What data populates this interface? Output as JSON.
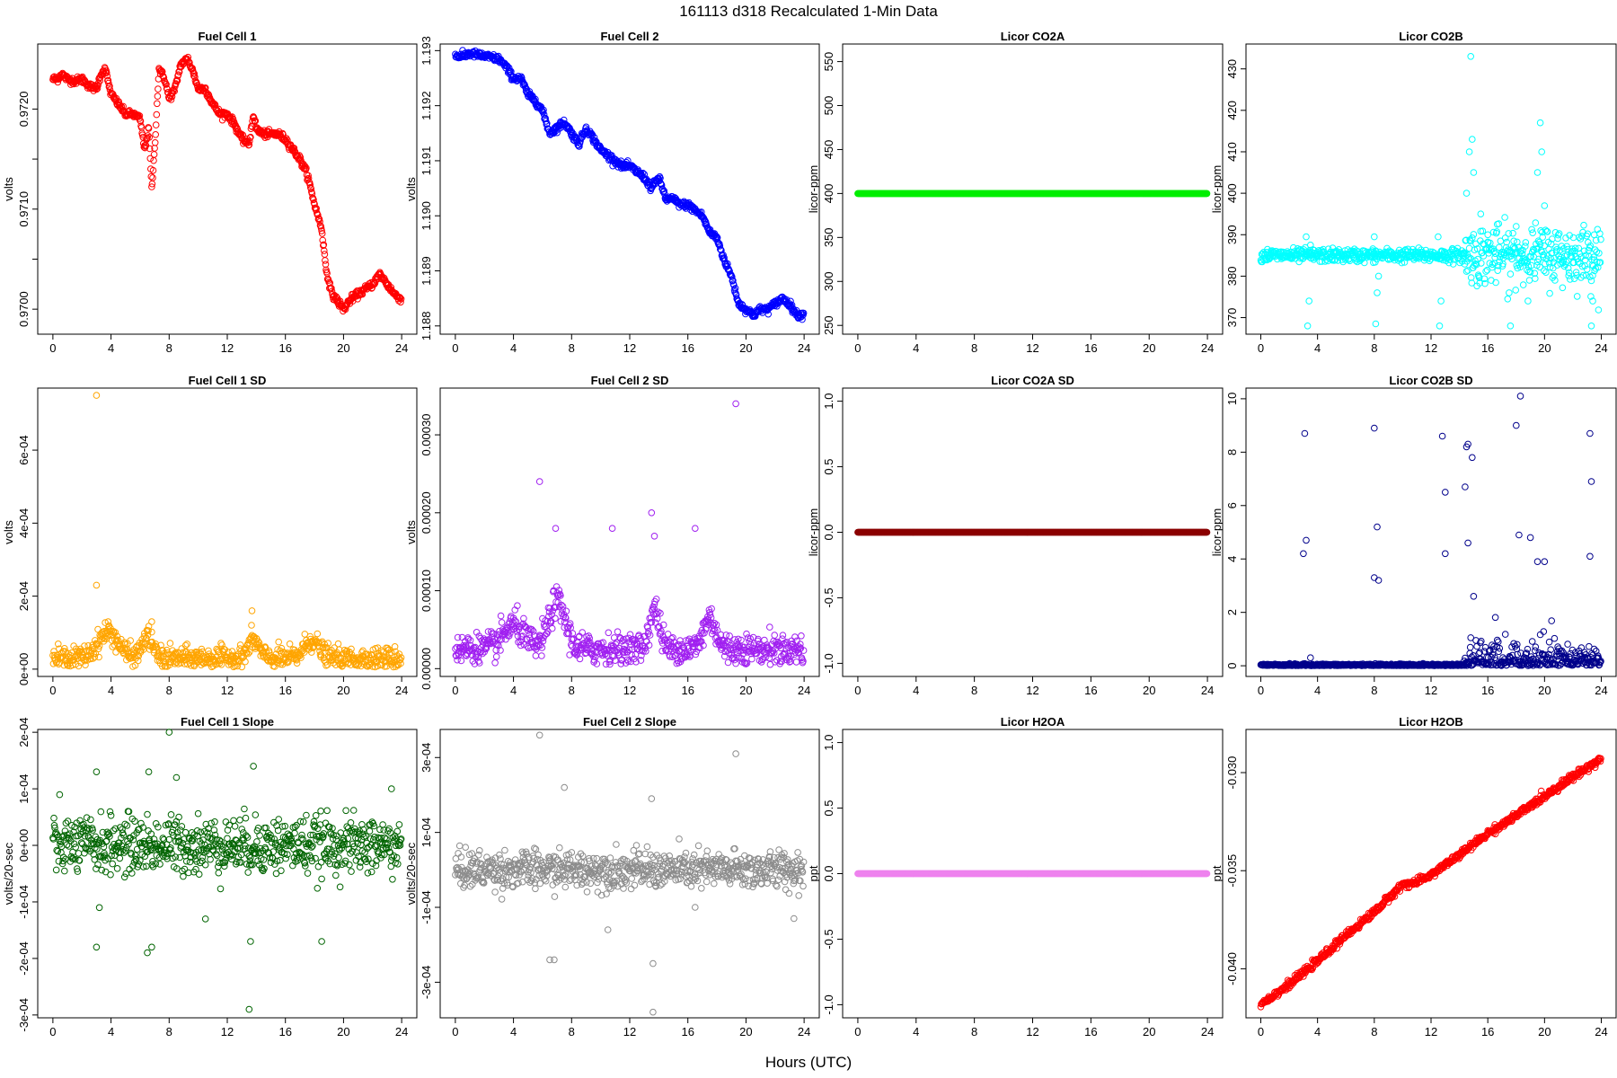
{
  "figure": {
    "title": "161113   d318   Recalculated 1-Min Data",
    "xlabel": "Hours (UTC)"
  },
  "chart_data": [
    {
      "id": "fc1",
      "type": "scatter",
      "title": "Fuel Cell 1",
      "ylabel": "volts",
      "color": "#ff0000",
      "xlim": [
        0,
        24
      ],
      "ylim": [
        0.96975,
        0.97265
      ],
      "yticks": [
        0.97,
        0.9705,
        0.971,
        0.9715,
        0.972
      ],
      "yticklabels": [
        "0.9700",
        "",
        "0.9710",
        "",
        "0.9720"
      ],
      "kind": "trace",
      "series": [
        [
          0,
          0.9723
        ],
        [
          0.3,
          0.9723
        ],
        [
          0.6,
          0.97235
        ],
        [
          1.0,
          0.9723
        ],
        [
          1.5,
          0.97228
        ],
        [
          2.0,
          0.9723
        ],
        [
          2.5,
          0.97223
        ],
        [
          3.0,
          0.9722
        ],
        [
          3.3,
          0.97235
        ],
        [
          3.6,
          0.9724
        ],
        [
          4.0,
          0.97215
        ],
        [
          4.5,
          0.97205
        ],
        [
          5.0,
          0.97195
        ],
        [
          5.5,
          0.97195
        ],
        [
          6.0,
          0.9719
        ],
        [
          6.3,
          0.9716
        ],
        [
          6.6,
          0.9718
        ],
        [
          6.8,
          0.9712
        ],
        [
          7.0,
          0.9716
        ],
        [
          7.3,
          0.9724
        ],
        [
          7.7,
          0.9723
        ],
        [
          8.0,
          0.9721
        ],
        [
          8.4,
          0.9722
        ],
        [
          8.8,
          0.97245
        ],
        [
          9.3,
          0.9725
        ],
        [
          9.7,
          0.97235
        ],
        [
          10.0,
          0.9722
        ],
        [
          10.5,
          0.9722
        ],
        [
          11.0,
          0.97205
        ],
        [
          11.5,
          0.97195
        ],
        [
          12.0,
          0.97195
        ],
        [
          12.5,
          0.97185
        ],
        [
          13.0,
          0.9717
        ],
        [
          13.5,
          0.97165
        ],
        [
          13.8,
          0.97195
        ],
        [
          14.0,
          0.9718
        ],
        [
          14.5,
          0.97175
        ],
        [
          15.0,
          0.97175
        ],
        [
          15.5,
          0.97175
        ],
        [
          16.0,
          0.9717
        ],
        [
          16.5,
          0.9716
        ],
        [
          17.0,
          0.9715
        ],
        [
          17.5,
          0.97135
        ],
        [
          18.0,
          0.97105
        ],
        [
          18.5,
          0.9708
        ],
        [
          18.8,
          0.9704
        ],
        [
          19.2,
          0.97015
        ],
        [
          19.5,
          0.9701
        ],
        [
          20.0,
          0.97
        ],
        [
          20.5,
          0.9701
        ],
        [
          21.0,
          0.97015
        ],
        [
          21.5,
          0.9702
        ],
        [
          22.0,
          0.97025
        ],
        [
          22.5,
          0.97035
        ],
        [
          23.0,
          0.97025
        ],
        [
          23.5,
          0.97015
        ],
        [
          24.0,
          0.9701
        ]
      ]
    },
    {
      "id": "fc2",
      "type": "scatter",
      "title": "Fuel Cell 2",
      "ylabel": "volts",
      "color": "#0000ff",
      "xlim": [
        0,
        24
      ],
      "ylim": [
        1.18785,
        1.19312
      ],
      "yticks": [
        1.188,
        1.189,
        1.19,
        1.191,
        1.192,
        1.193
      ],
      "yticklabels": [
        "1.188",
        "1.189",
        "1.190",
        "1.191",
        "1.192",
        "1.193"
      ],
      "kind": "trace",
      "series": [
        [
          0,
          1.1929
        ],
        [
          0.5,
          1.1929
        ],
        [
          1.0,
          1.19295
        ],
        [
          2.0,
          1.1929
        ],
        [
          3.0,
          1.19285
        ],
        [
          3.5,
          1.1927
        ],
        [
          4.0,
          1.1925
        ],
        [
          4.5,
          1.1925
        ],
        [
          5.0,
          1.1922
        ],
        [
          5.5,
          1.1921
        ],
        [
          6.0,
          1.1919
        ],
        [
          6.5,
          1.1915
        ],
        [
          7.0,
          1.1916
        ],
        [
          7.5,
          1.1917
        ],
        [
          8.0,
          1.1915
        ],
        [
          8.5,
          1.1913
        ],
        [
          9.0,
          1.1916
        ],
        [
          9.5,
          1.1914
        ],
        [
          10.0,
          1.1912
        ],
        [
          10.5,
          1.1911
        ],
        [
          11.0,
          1.191
        ],
        [
          11.5,
          1.1909
        ],
        [
          12.0,
          1.1909
        ],
        [
          12.5,
          1.1908
        ],
        [
          13.0,
          1.1907
        ],
        [
          13.5,
          1.1905
        ],
        [
          14.0,
          1.1907
        ],
        [
          14.5,
          1.1903
        ],
        [
          15.0,
          1.1903
        ],
        [
          15.5,
          1.1902
        ],
        [
          16.0,
          1.1902
        ],
        [
          16.5,
          1.1901
        ],
        [
          17.0,
          1.19
        ],
        [
          17.5,
          1.1897
        ],
        [
          18.0,
          1.1896
        ],
        [
          18.5,
          1.1892
        ],
        [
          19.0,
          1.1889
        ],
        [
          19.5,
          1.1884
        ],
        [
          20.0,
          1.1883
        ],
        [
          20.5,
          1.1882
        ],
        [
          21.0,
          1.1883
        ],
        [
          21.5,
          1.1883
        ],
        [
          22.0,
          1.1884
        ],
        [
          22.5,
          1.1885
        ],
        [
          23.0,
          1.1884
        ],
        [
          23.5,
          1.1882
        ],
        [
          24.0,
          1.1882
        ]
      ]
    },
    {
      "id": "co2a",
      "type": "scatter",
      "title": "Licor CO2A",
      "ylabel": "licor-ppm",
      "color": "#00ee00",
      "xlim": [
        0,
        24
      ],
      "ylim": [
        240,
        570
      ],
      "yticks": [
        250,
        300,
        350,
        400,
        450,
        500,
        550
      ],
      "yticklabels": [
        "250",
        "300",
        "350",
        "400",
        "450",
        "500",
        "550"
      ],
      "kind": "flat",
      "series": [
        [
          0,
          400
        ],
        [
          24,
          400
        ]
      ]
    },
    {
      "id": "co2b",
      "type": "scatter",
      "title": "Licor CO2B",
      "ylabel": "licor-ppm",
      "color": "#00ffff",
      "xlim": [
        0,
        24
      ],
      "ylim": [
        366,
        436
      ],
      "yticks": [
        370,
        380,
        390,
        400,
        410,
        420,
        430
      ],
      "yticklabels": [
        "370",
        "380",
        "390",
        "400",
        "410",
        "420",
        "430"
      ],
      "kind": "noise",
      "base": 385,
      "spread": 0.8,
      "outliers": [
        [
          3.2,
          389.5
        ],
        [
          3.3,
          368
        ],
        [
          3.4,
          374
        ],
        [
          3.5,
          387.5
        ],
        [
          8.0,
          389.5
        ],
        [
          8.1,
          368.5
        ],
        [
          8.2,
          376
        ],
        [
          8.3,
          380
        ],
        [
          12.5,
          389.5
        ],
        [
          12.6,
          368
        ],
        [
          12.7,
          374
        ],
        [
          14.5,
          400
        ],
        [
          14.7,
          410
        ],
        [
          14.8,
          433
        ],
        [
          14.9,
          413
        ],
        [
          15.0,
          405
        ],
        [
          15.5,
          395
        ],
        [
          16.0,
          390
        ],
        [
          17.5,
          376
        ],
        [
          17.6,
          368
        ],
        [
          18.0,
          392
        ],
        [
          19.5,
          405
        ],
        [
          19.7,
          417
        ],
        [
          19.8,
          410
        ],
        [
          20.0,
          397
        ],
        [
          23.3,
          368
        ],
        [
          23.4,
          374
        ],
        [
          23.5,
          390
        ]
      ],
      "noisy_after": 14.3,
      "noisy_spread": 3.5
    },
    {
      "id": "fc1sd",
      "type": "scatter",
      "title": "Fuel Cell 1 SD",
      "ylabel": "volts",
      "color": "#ffa500",
      "xlim": [
        0,
        24
      ],
      "ylim": [
        -2e-05,
        0.00077
      ],
      "yticks": [
        0,
        0.0002,
        0.0004,
        0.0006
      ],
      "yticklabels": [
        "0e+00",
        "2e-04",
        "4e-04",
        "6e-04"
      ],
      "kind": "noise",
      "base": 3e-05,
      "spread": 1.5e-05,
      "bumps": [
        [
          3.8,
          7e-05,
          1.0
        ],
        [
          6.5,
          6e-05,
          0.5
        ],
        [
          13.8,
          5e-05,
          0.5
        ],
        [
          17.8,
          5e-05,
          0.7
        ]
      ],
      "outliers": [
        [
          3.0,
          0.00075
        ],
        [
          3.0,
          0.00023
        ],
        [
          3.8,
          0.00013
        ],
        [
          6.8,
          0.00013
        ],
        [
          13.7,
          0.00016
        ]
      ]
    },
    {
      "id": "fc2sd",
      "type": "scatter",
      "title": "Fuel Cell 2 SD",
      "ylabel": "volts",
      "color": "#a020f0",
      "xlim": [
        0,
        24
      ],
      "ylim": [
        -1e-05,
        0.00036
      ],
      "yticks": [
        0,
        0.0001,
        0.0002,
        0.0003
      ],
      "yticklabels": [
        "0.00000",
        "0.00010",
        "0.00020",
        "0.00030"
      ],
      "kind": "noise",
      "base": 2.5e-05,
      "spread": 1e-05,
      "bumps": [
        [
          4.0,
          3e-05,
          1.0
        ],
        [
          7.0,
          6e-05,
          0.8
        ],
        [
          13.7,
          5e-05,
          0.5
        ],
        [
          17.5,
          4e-05,
          0.6
        ]
      ],
      "outliers": [
        [
          5.8,
          0.00024
        ],
        [
          6.9,
          0.00018
        ],
        [
          10.8,
          0.00018
        ],
        [
          13.5,
          0.0002
        ],
        [
          13.7,
          0.00017
        ],
        [
          16.5,
          0.00018
        ],
        [
          19.3,
          0.00034
        ]
      ]
    },
    {
      "id": "co2asd",
      "type": "scatter",
      "title": "Licor CO2A SD",
      "ylabel": "licor-ppm",
      "color": "#8b0000",
      "xlim": [
        0,
        24
      ],
      "ylim": [
        -1.1,
        1.1
      ],
      "yticks": [
        -1,
        -0.5,
        0,
        0.5,
        1
      ],
      "yticklabels": [
        "-1.0",
        "-0.5",
        "0.0",
        "0.5",
        "1.0"
      ],
      "kind": "flat",
      "series": [
        [
          0,
          0
        ],
        [
          24,
          0
        ]
      ]
    },
    {
      "id": "co2bsd",
      "type": "scatter",
      "title": "Licor CO2B SD",
      "ylabel": "licor-ppm",
      "color": "#00008b",
      "xlim": [
        0,
        24
      ],
      "ylim": [
        -0.4,
        10.4
      ],
      "yticks": [
        0,
        2,
        4,
        6,
        8,
        10
      ],
      "yticklabels": [
        "0",
        "2",
        "4",
        "6",
        "8",
        "10"
      ],
      "kind": "noise",
      "base": 0.03,
      "spread": 0.02,
      "noisy_after": 14.3,
      "noisy_spread": 0.5,
      "outliers": [
        [
          3.0,
          4.2
        ],
        [
          3.1,
          8.7
        ],
        [
          3.2,
          4.7
        ],
        [
          3.5,
          0.3
        ],
        [
          8.0,
          8.9
        ],
        [
          8.2,
          5.2
        ],
        [
          8.0,
          3.3
        ],
        [
          8.3,
          3.2
        ],
        [
          12.8,
          8.6
        ],
        [
          13.0,
          6.5
        ],
        [
          13.0,
          4.2
        ],
        [
          14.4,
          6.7
        ],
        [
          14.5,
          8.2
        ],
        [
          14.6,
          8.3
        ],
        [
          14.6,
          4.6
        ],
        [
          14.9,
          7.8
        ],
        [
          15.0,
          2.6
        ],
        [
          18.0,
          9.0
        ],
        [
          18.3,
          10.1
        ],
        [
          18.2,
          4.9
        ],
        [
          19.0,
          4.8
        ],
        [
          19.5,
          3.9
        ],
        [
          20.0,
          3.9
        ],
        [
          23.2,
          8.7
        ],
        [
          23.3,
          6.9
        ],
        [
          23.2,
          4.1
        ]
      ]
    },
    {
      "id": "fc1slope",
      "type": "scatter",
      "title": "Fuel Cell 1 Slope",
      "ylabel": "volts/20-sec",
      "color": "#006400",
      "xlim": [
        0,
        24
      ],
      "ylim": [
        -0.000305,
        0.000205
      ],
      "yticks": [
        -0.0003,
        -0.0002,
        -0.0001,
        0,
        0.0001,
        0.0002
      ],
      "yticklabels": [
        "-3e-04",
        "-2e-04",
        "-1e-04",
        "0e+00",
        "1e-04",
        "2e-04"
      ],
      "kind": "noise",
      "base": 0.0,
      "spread": 2.5e-05,
      "outliers": [
        [
          3.0,
          0.00013
        ],
        [
          3.0,
          -0.00018
        ],
        [
          3.2,
          -0.00011
        ],
        [
          6.6,
          0.00013
        ],
        [
          6.5,
          -0.00019
        ],
        [
          6.8,
          -0.00018
        ],
        [
          8.0,
          0.0002
        ],
        [
          8.5,
          0.00012
        ],
        [
          10.5,
          -0.00013
        ],
        [
          13.5,
          -0.00029
        ],
        [
          13.6,
          -0.00017
        ],
        [
          13.8,
          0.00014
        ],
        [
          18.5,
          -0.00017
        ],
        [
          23.3,
          0.0001
        ]
      ]
    },
    {
      "id": "fc2slope",
      "type": "scatter",
      "title": "Fuel Cell 2 Slope",
      "ylabel": "volts/20-sec",
      "color": "#8c8c8c",
      "xlim": [
        0,
        24
      ],
      "ylim": [
        -0.000395,
        0.000375
      ],
      "yticks": [
        -0.0003,
        -0.0001,
        0.0001,
        0.0003
      ],
      "yticklabels": [
        "-3e-04",
        "-1e-04",
        "1e-04",
        "3e-04"
      ],
      "kind": "noise",
      "base": 0.0,
      "spread": 2.5e-05,
      "outliers": [
        [
          5.8,
          0.00036
        ],
        [
          6.5,
          -0.00024
        ],
        [
          6.8,
          -0.00024
        ],
        [
          7.5,
          0.00022
        ],
        [
          10.5,
          -0.00016
        ],
        [
          13.5,
          0.00019
        ],
        [
          13.6,
          -0.00038
        ],
        [
          13.6,
          -0.00025
        ],
        [
          16.5,
          -0.0001
        ],
        [
          19.3,
          0.00031
        ],
        [
          23.3,
          -0.00013
        ]
      ]
    },
    {
      "id": "h2oa",
      "type": "scatter",
      "title": "Licor H2OA",
      "ylabel": "ppt",
      "color": "#ee82ee",
      "xlim": [
        0,
        24
      ],
      "ylim": [
        -1.1,
        1.1
      ],
      "yticks": [
        -1,
        -0.5,
        0,
        0.5,
        1
      ],
      "yticklabels": [
        "-1.0",
        "-0.5",
        "0.0",
        "0.5",
        "1.0"
      ],
      "kind": "flat",
      "series": [
        [
          0,
          0
        ],
        [
          24,
          0
        ]
      ]
    },
    {
      "id": "h2ob",
      "type": "scatter",
      "title": "Licor H2OB",
      "ylabel": "ppt",
      "color": "#ff0000",
      "xlim": [
        0,
        24
      ],
      "ylim": [
        -0.0425,
        -0.0278
      ],
      "yticks": [
        -0.04,
        -0.035,
        -0.03
      ],
      "yticklabels": [
        "-0.040",
        "-0.035",
        "-0.030"
      ],
      "kind": "trace",
      "series": [
        [
          0,
          -0.0418
        ],
        [
          2,
          -0.0408
        ],
        [
          4,
          -0.0396
        ],
        [
          6,
          -0.0383
        ],
        [
          8,
          -0.0371
        ],
        [
          10,
          -0.0357
        ],
        [
          11,
          -0.0356
        ],
        [
          12,
          -0.0352
        ],
        [
          14,
          -0.0342
        ],
        [
          16,
          -0.0331
        ],
        [
          18,
          -0.0322
        ],
        [
          20,
          -0.0312
        ],
        [
          22,
          -0.0302
        ],
        [
          24,
          -0.0293
        ]
      ]
    }
  ],
  "xticks": [
    0,
    4,
    8,
    12,
    16,
    20,
    24
  ],
  "xticklabels": [
    "0",
    "4",
    "8",
    "12",
    "16",
    "20",
    "24"
  ]
}
